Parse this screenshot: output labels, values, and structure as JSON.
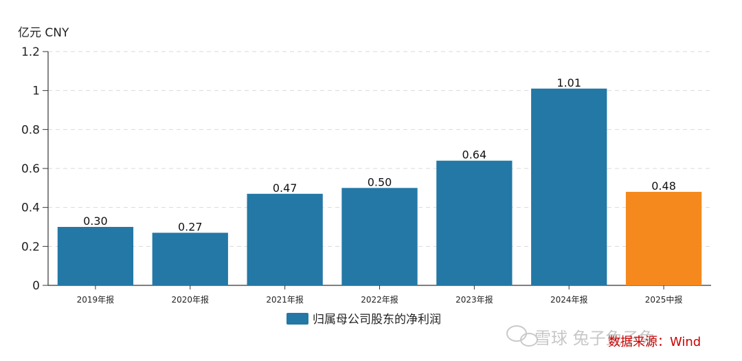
{
  "chart_data": {
    "type": "bar",
    "unit_label": "亿元  CNY",
    "categories": [
      "2019年报",
      "2020年报",
      "2021年报",
      "2022年报",
      "2023年报",
      "2024年报",
      "2025中报"
    ],
    "series": [
      {
        "name": "归属母公司股东的净利润",
        "values": [
          0.3,
          0.27,
          0.47,
          0.5,
          0.64,
          1.01,
          0.48
        ],
        "data_labels": [
          "0.30",
          "0.27",
          "0.47",
          "0.50",
          "0.64",
          "1.01",
          "0.48"
        ]
      }
    ],
    "bar_colors": [
      "#2378a6",
      "#2378a6",
      "#2378a6",
      "#2378a6",
      "#2378a6",
      "#2378a6",
      "#f5891d"
    ],
    "ylim": [
      0,
      1.2
    ],
    "yticks": [
      0,
      0.2,
      0.4,
      0.6,
      0.8,
      1,
      1.2
    ],
    "ytick_labels": [
      "0",
      "0.2",
      "0.4",
      "0.6",
      "0.8",
      "1",
      "1.2"
    ],
    "grid": true,
    "legend_position": "bottom-center"
  },
  "source_note": "数据来源：Wind",
  "watermark": "雪球  兔子兔子兔"
}
